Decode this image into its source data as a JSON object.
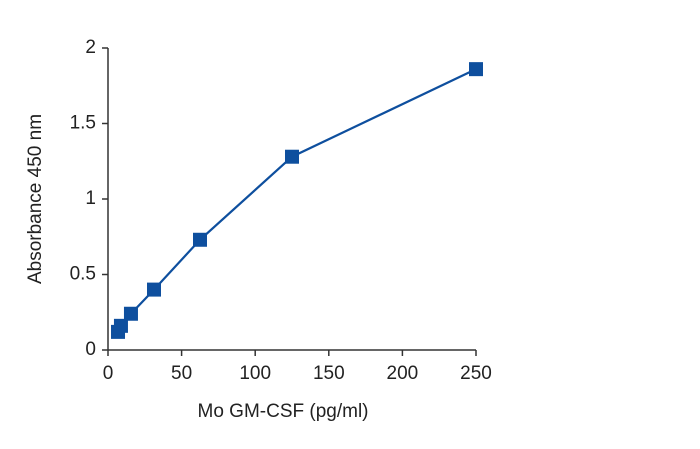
{
  "chart_data": {
    "type": "line",
    "xlabel": "Mo GM-CSF (pg/ml)",
    "ylabel": "Absorbance 450 nm",
    "x": [
      6.8,
      8.8,
      15.6,
      31.25,
      62.5,
      125,
      250
    ],
    "series": [
      {
        "name": null,
        "color": "#0e4f9e",
        "values": [
          0.12,
          0.16,
          0.24,
          0.4,
          0.73,
          1.28,
          1.86
        ]
      }
    ],
    "xlim": [
      0,
      250
    ],
    "xticks": [
      0,
      50,
      100,
      150,
      200,
      250
    ],
    "ylim": [
      0,
      2
    ],
    "yticks": [
      0,
      0.5,
      1,
      1.5,
      2
    ],
    "marker": "square",
    "grid": false
  }
}
